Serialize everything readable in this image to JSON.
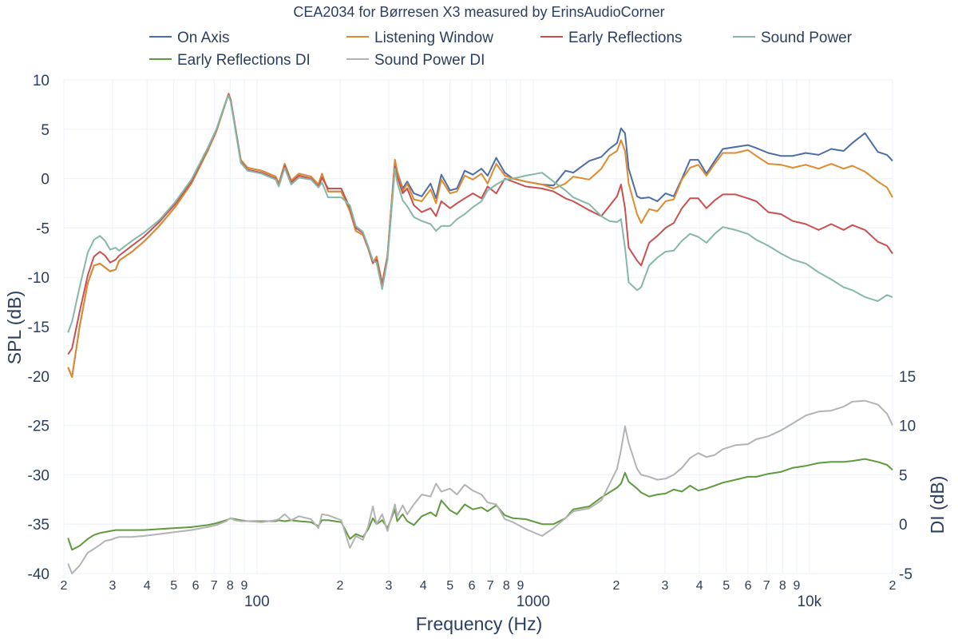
{
  "chart_data": {
    "type": "line",
    "title": "CEA2034 for Børresen X3 measured by ErinsAudioCorner",
    "xlabel": "Frequency (Hz)",
    "ylabel": "SPL (dB)",
    "y2label": "DI (dB)",
    "xscale": "log",
    "xlim": [
      20,
      20000
    ],
    "ylim": [
      -40,
      10
    ],
    "y2lim": [
      -5,
      45
    ],
    "grid": true,
    "legend_placement": "top",
    "x_ticks": [
      {
        "v": 20,
        "t": "2"
      },
      {
        "v": 30,
        "t": "3"
      },
      {
        "v": 40,
        "t": "4"
      },
      {
        "v": 50,
        "t": "5"
      },
      {
        "v": 60,
        "t": "6"
      },
      {
        "v": 70,
        "t": "7"
      },
      {
        "v": 80,
        "t": "8"
      },
      {
        "v": 90,
        "t": "9"
      },
      {
        "v": 100,
        "t": "100",
        "major": true
      },
      {
        "v": 200,
        "t": "2"
      },
      {
        "v": 300,
        "t": "3"
      },
      {
        "v": 400,
        "t": "4"
      },
      {
        "v": 500,
        "t": "5"
      },
      {
        "v": 600,
        "t": "6"
      },
      {
        "v": 700,
        "t": "7"
      },
      {
        "v": 800,
        "t": "8"
      },
      {
        "v": 900,
        "t": "9"
      },
      {
        "v": 1000,
        "t": "1000",
        "major": true
      },
      {
        "v": 2000,
        "t": "2"
      },
      {
        "v": 3000,
        "t": "3"
      },
      {
        "v": 4000,
        "t": "4"
      },
      {
        "v": 5000,
        "t": "5"
      },
      {
        "v": 6000,
        "t": "6"
      },
      {
        "v": 7000,
        "t": "7"
      },
      {
        "v": 8000,
        "t": "8"
      },
      {
        "v": 9000,
        "t": "9"
      },
      {
        "v": 10000,
        "t": "10k",
        "major": true
      },
      {
        "v": 20000,
        "t": "2"
      }
    ],
    "y_ticks": [
      10,
      5,
      0,
      -5,
      -10,
      -15,
      -20,
      -25,
      -30,
      -35,
      -40
    ],
    "y2_ticks": [
      15,
      10,
      5,
      0,
      -5
    ],
    "x": [
      20.7,
      21.4,
      22.8,
      24.4,
      25.7,
      27,
      28.2,
      29.4,
      30.8,
      31.7,
      35.3,
      38.9,
      44.3,
      50.5,
      57.9,
      66.3,
      71.3,
      77.3,
      79,
      80.3,
      83.5,
      87.4,
      92.5,
      104,
      117,
      120,
      126,
      133,
      142,
      157,
      167,
      172,
      181,
      202,
      217,
      228,
      242,
      253,
      263,
      271,
      284,
      297,
      316,
      322,
      337,
      350,
      370,
      395,
      425,
      445,
      465,
      500,
      530,
      565,
      605,
      650,
      684,
      735,
      790,
      845,
      941,
      1077,
      1185,
      1309,
      1397,
      1596,
      1765,
      1885,
      2012,
      2080,
      2150,
      2218,
      2378,
      2460,
      2630,
      2815,
      3014,
      3228,
      3457,
      3700,
      3960,
      4240,
      4540,
      4860,
      5400,
      5990,
      6420,
      7100,
      7900,
      8700,
      9700,
      10800,
      12000,
      13300,
      14300,
      15900,
      17700,
      19100,
      20000
    ],
    "series": [
      {
        "name": "On Axis",
        "axis": "y",
        "color": "#4c6ea8",
        "values": [
          -19.1,
          -20.1,
          -15,
          -10.6,
          -8.8,
          -8.6,
          -9,
          -9.4,
          -9.2,
          -8.3,
          -7.4,
          -6.4,
          -4.8,
          -2.9,
          -0.5,
          2.8,
          4.8,
          7.8,
          8.6,
          8,
          5.2,
          1.9,
          1.1,
          0.8,
          0.2,
          -0.5,
          1.5,
          -0.2,
          0.5,
          0.2,
          -0.6,
          0.5,
          -1.3,
          -1.3,
          -3.3,
          -5.3,
          -5.7,
          -7.1,
          -8.6,
          -7.9,
          -10.6,
          -7.8,
          1.9,
          0.7,
          -1.0,
          -0.3,
          -1.5,
          -1.8,
          -0.5,
          -2.0,
          0.4,
          -1.2,
          -1.0,
          0.8,
          0.4,
          1.0,
          0.3,
          2.1,
          0.6,
          0,
          -0.3,
          -0.6,
          -0.7,
          0.8,
          0.6,
          1.8,
          2.2,
          3.0,
          3.6,
          5.1,
          4.6,
          1.0,
          -1.8,
          -2.0,
          -1.9,
          -2.3,
          -1.5,
          -1.8,
          0,
          1.9,
          1.9,
          0.5,
          1.8,
          3.0,
          3.2,
          3.4,
          3.1,
          2.6,
          2.3,
          2.3,
          2.6,
          2.4,
          3.0,
          2.8,
          3.6,
          4.6,
          2.7,
          2.4,
          1.8
        ]
      },
      {
        "name": "Listening Window",
        "axis": "y",
        "color": "#e08a2e",
        "values": [
          -19.1,
          -20.1,
          -15,
          -10.6,
          -8.8,
          -8.6,
          -9,
          -9.4,
          -9.2,
          -8.3,
          -7.4,
          -6.4,
          -4.8,
          -2.9,
          -0.5,
          2.8,
          4.8,
          7.8,
          8.6,
          8,
          5.2,
          1.9,
          1.1,
          0.8,
          0.2,
          -0.5,
          1.5,
          -0.2,
          0.5,
          0.2,
          -0.6,
          0.5,
          -1.3,
          -1.3,
          -3.3,
          -5.3,
          -5.7,
          -7.1,
          -8.6,
          -7.9,
          -10.6,
          -7.8,
          1.9,
          0.7,
          -1.3,
          -0.5,
          -2.1,
          -2.3,
          -1.1,
          -2.5,
          -0.1,
          -1.5,
          -1.3,
          0.3,
          -0.1,
          0.5,
          -0.5,
          1.5,
          0.3,
          0,
          -0.3,
          -0.6,
          -1,
          -0.5,
          0.2,
          -0.1,
          1,
          2.3,
          2.8,
          3.9,
          2.8,
          -0.5,
          -3.6,
          -4.5,
          -3.1,
          -3.3,
          -2.3,
          -2.1,
          -0.1,
          1.1,
          1.4,
          0.3,
          1.5,
          2.6,
          2.6,
          2.9,
          2.3,
          1.5,
          1.4,
          1.1,
          1.4,
          1,
          1.5,
          1,
          1.3,
          0.7,
          -0.3,
          -0.9,
          -1.9
        ]
      },
      {
        "name": "Early Reflections",
        "axis": "y",
        "color": "#c9504f",
        "values": [
          -17.8,
          -17.2,
          -13.5,
          -9.8,
          -7.9,
          -7.4,
          -7.8,
          -8.5,
          -8.2,
          -7.8,
          -6.8,
          -5.9,
          -4.4,
          -2.6,
          -0.3,
          3.0,
          4.9,
          7.9,
          8.5,
          8,
          5.2,
          1.7,
          0.9,
          0.6,
          0.0,
          -0.7,
          1.3,
          -0.4,
          0.3,
          0.0,
          -0.8,
          0.1,
          -1.0,
          -1.0,
          -3.0,
          -5.0,
          -5.5,
          -7.0,
          -8.5,
          -8.2,
          -10.8,
          -8.0,
          1.2,
          0.2,
          -1.5,
          -1.0,
          -2.7,
          -3.4,
          -3.0,
          -3.8,
          -2.3,
          -3.0,
          -2.5,
          -2.0,
          -1.5,
          -2.0,
          -0.8,
          -1.5,
          0.0,
          -0.3,
          -0.8,
          -1.0,
          -1.3,
          -2.0,
          -2.3,
          -3.2,
          -3.8,
          -2.8,
          -1.8,
          -0.6,
          -3.0,
          -7.0,
          -8.3,
          -8.8,
          -6.5,
          -5.8,
          -5.0,
          -4.5,
          -3.0,
          -2.0,
          -2.0,
          -3.0,
          -2.2,
          -1.6,
          -1.6,
          -2.0,
          -2.3,
          -3.4,
          -3.6,
          -4.3,
          -4.6,
          -5.2,
          -4.6,
          -5.2,
          -4.7,
          -5.2,
          -6.4,
          -6.8,
          -7.6
        ]
      },
      {
        "name": "Sound Power",
        "axis": "y",
        "color": "#86b8aa",
        "values": [
          -15.6,
          -14.5,
          -11,
          -7.5,
          -6.2,
          -5.8,
          -6.3,
          -7.2,
          -7.0,
          -7.3,
          -6.3,
          -5.5,
          -4.2,
          -2.4,
          -0.1,
          3.1,
          5.0,
          7.9,
          8.4,
          7.8,
          5.0,
          1.6,
          0.8,
          0.5,
          -0.1,
          -0.8,
          1.1,
          -0.6,
          0.1,
          -0.1,
          -0.9,
          -0.4,
          -1.9,
          -1.9,
          -2.7,
          -4.8,
          -5.4,
          -6.9,
          -8.3,
          -8.5,
          -11.2,
          -8.2,
          1.0,
          -0.4,
          -2.2,
          -2.8,
          -3.9,
          -4.3,
          -4.6,
          -5.3,
          -4.8,
          -4.8,
          -4.1,
          -3.6,
          -2.9,
          -2.3,
          -1.2,
          -0.6,
          -0.1,
          0,
          0.3,
          0.6,
          -0.3,
          -1.2,
          -1.9,
          -2.6,
          -3.8,
          -4.3,
          -4.4,
          -4.1,
          -7.0,
          -10.5,
          -11.3,
          -11.0,
          -8.8,
          -8.0,
          -7.4,
          -7.3,
          -6.3,
          -5.6,
          -5.9,
          -6.5,
          -5.6,
          -4.9,
          -5.2,
          -5.6,
          -6.2,
          -6.8,
          -7.6,
          -8.2,
          -8.6,
          -9.5,
          -10.2,
          -11,
          -11.3,
          -12.0,
          -12.4,
          -11.8,
          -12.0
        ]
      },
      {
        "name": "Early Reflections DI",
        "axis": "y2",
        "color": "#5f9a3d",
        "values": [
          -1.4,
          -2.6,
          -2.2,
          -1.5,
          -1.1,
          -0.9,
          -0.8,
          -0.7,
          -0.6,
          -0.6,
          -0.6,
          -0.6,
          -0.5,
          -0.4,
          -0.3,
          -0.1,
          0.1,
          0.4,
          0.5,
          0.6,
          0.5,
          0.4,
          0.3,
          0.3,
          0.3,
          0.4,
          0.3,
          0.4,
          0.3,
          0.2,
          -0.2,
          0.4,
          0.4,
          0.2,
          -1.5,
          -1.0,
          -1.3,
          -0.5,
          0.6,
          0.0,
          0.4,
          -0.4,
          1.5,
          0.3,
          1.0,
          0.3,
          -0.1,
          0.8,
          1.2,
          0.8,
          2.4,
          1.4,
          1.0,
          2.0,
          1.5,
          1.7,
          1.3,
          1.9,
          0.9,
          0.6,
          0.5,
          0.0,
          0.0,
          0.6,
          1.5,
          1.8,
          2.7,
          3.2,
          3.7,
          4.1,
          5.2,
          4.3,
          3.6,
          3.2,
          2.8,
          3.0,
          3.1,
          3.5,
          3.3,
          3.9,
          3.4,
          3.6,
          3.9,
          4.2,
          4.5,
          4.8,
          4.8,
          5.1,
          5.3,
          5.7,
          5.9,
          6.2,
          6.3,
          6.3,
          6.4,
          6.6,
          6.3,
          6.0,
          5.5
        ]
      },
      {
        "name": "Sound Power DI",
        "axis": "y2",
        "color": "#b3b3b3",
        "values": [
          -4.0,
          -5.0,
          -4.2,
          -2.9,
          -2.5,
          -2.1,
          -1.7,
          -1.6,
          -1.4,
          -1.3,
          -1.3,
          -1.2,
          -1.0,
          -0.8,
          -0.6,
          -0.3,
          -0.1,
          0.3,
          0.5,
          0.6,
          0.4,
          0.3,
          0.3,
          0.2,
          0.4,
          0.5,
          1.0,
          0.4,
          0.8,
          0.5,
          -0.4,
          1.0,
          0.9,
          0.4,
          -2.4,
          -1.2,
          -1.6,
          -0.2,
          1.8,
          0.0,
          1.0,
          -0.7,
          2.0,
          0.8,
          1.9,
          1.0,
          2.0,
          3.0,
          2.8,
          4.1,
          3.3,
          3.6,
          3.0,
          4.0,
          3.4,
          3.0,
          2.2,
          2.0,
          0.5,
          0.2,
          -0.5,
          -1.2,
          -0.4,
          0.6,
          1.3,
          1.6,
          2.4,
          4.0,
          5.6,
          7.5,
          9.9,
          8.2,
          5.6,
          5.0,
          4.8,
          4.5,
          4.6,
          5.0,
          5.7,
          6.7,
          7.2,
          6.8,
          7.0,
          7.6,
          8.0,
          8.1,
          8.6,
          8.9,
          9.5,
          10.2,
          11.0,
          11.4,
          11.5,
          11.9,
          12.4,
          12.5,
          12.1,
          11.2,
          10.0
        ]
      }
    ]
  }
}
